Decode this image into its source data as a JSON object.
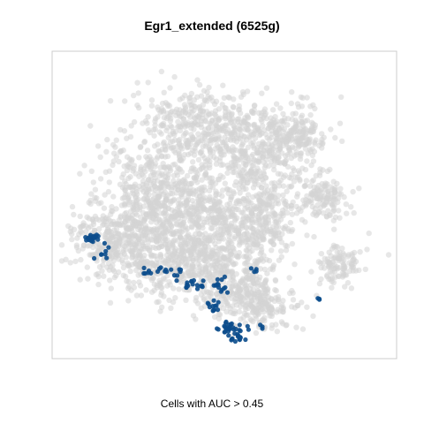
{
  "chart_data": {
    "type": "scatter",
    "title": "Egr1_extended (6525g)",
    "xlabel": "Cells with AUC > 0.45",
    "ylabel": "",
    "grid": false,
    "legend": "none",
    "colors": {
      "background_points": "#d3d3d3",
      "highlighted_points": "#0b4d8c",
      "panel_border": "#cccccc"
    },
    "series": [
      {
        "role": "cells_below_threshold",
        "clusters": [
          {
            "cx": 0.15,
            "cy": 0.62,
            "rx": 0.12,
            "ry": 0.12,
            "n": 260
          },
          {
            "cx": 0.28,
            "cy": 0.48,
            "rx": 0.17,
            "ry": 0.2,
            "n": 520
          },
          {
            "cx": 0.45,
            "cy": 0.55,
            "rx": 0.2,
            "ry": 0.25,
            "n": 650
          },
          {
            "cx": 0.6,
            "cy": 0.3,
            "rx": 0.18,
            "ry": 0.16,
            "n": 420
          },
          {
            "cx": 0.4,
            "cy": 0.22,
            "rx": 0.18,
            "ry": 0.12,
            "n": 300
          },
          {
            "cx": 0.6,
            "cy": 0.55,
            "rx": 0.12,
            "ry": 0.14,
            "n": 260
          },
          {
            "cx": 0.35,
            "cy": 0.7,
            "rx": 0.2,
            "ry": 0.12,
            "n": 330
          },
          {
            "cx": 0.55,
            "cy": 0.78,
            "rx": 0.13,
            "ry": 0.1,
            "n": 230
          },
          {
            "cx": 0.62,
            "cy": 0.86,
            "rx": 0.1,
            "ry": 0.06,
            "n": 120
          },
          {
            "cx": 0.8,
            "cy": 0.47,
            "rx": 0.08,
            "ry": 0.08,
            "n": 130
          },
          {
            "cx": 0.85,
            "cy": 0.7,
            "rx": 0.07,
            "ry": 0.07,
            "n": 110
          },
          {
            "cx": 0.72,
            "cy": 0.25,
            "rx": 0.08,
            "ry": 0.1,
            "n": 120
          }
        ]
      },
      {
        "role": "cells_above_threshold",
        "clusters": [
          {
            "cx": 0.09,
            "cy": 0.61,
            "rx": 0.025,
            "ry": 0.02,
            "n": 22
          },
          {
            "cx": 0.12,
            "cy": 0.66,
            "rx": 0.02,
            "ry": 0.03,
            "n": 8
          },
          {
            "cx": 0.3,
            "cy": 0.72,
            "rx": 0.07,
            "ry": 0.02,
            "n": 18
          },
          {
            "cx": 0.4,
            "cy": 0.77,
            "rx": 0.05,
            "ry": 0.015,
            "n": 16
          },
          {
            "cx": 0.49,
            "cy": 0.78,
            "rx": 0.03,
            "ry": 0.03,
            "n": 14
          },
          {
            "cx": 0.46,
            "cy": 0.84,
            "rx": 0.02,
            "ry": 0.025,
            "n": 12
          },
          {
            "cx": 0.52,
            "cy": 0.92,
            "rx": 0.04,
            "ry": 0.02,
            "n": 28
          },
          {
            "cx": 0.54,
            "cy": 0.95,
            "rx": 0.02,
            "ry": 0.015,
            "n": 12
          },
          {
            "cx": 0.59,
            "cy": 0.72,
            "rx": 0.01,
            "ry": 0.01,
            "n": 4
          },
          {
            "cx": 0.61,
            "cy": 0.91,
            "rx": 0.01,
            "ry": 0.01,
            "n": 3
          },
          {
            "cx": 0.79,
            "cy": 0.82,
            "rx": 0.01,
            "ry": 0.01,
            "n": 3
          }
        ]
      }
    ]
  }
}
